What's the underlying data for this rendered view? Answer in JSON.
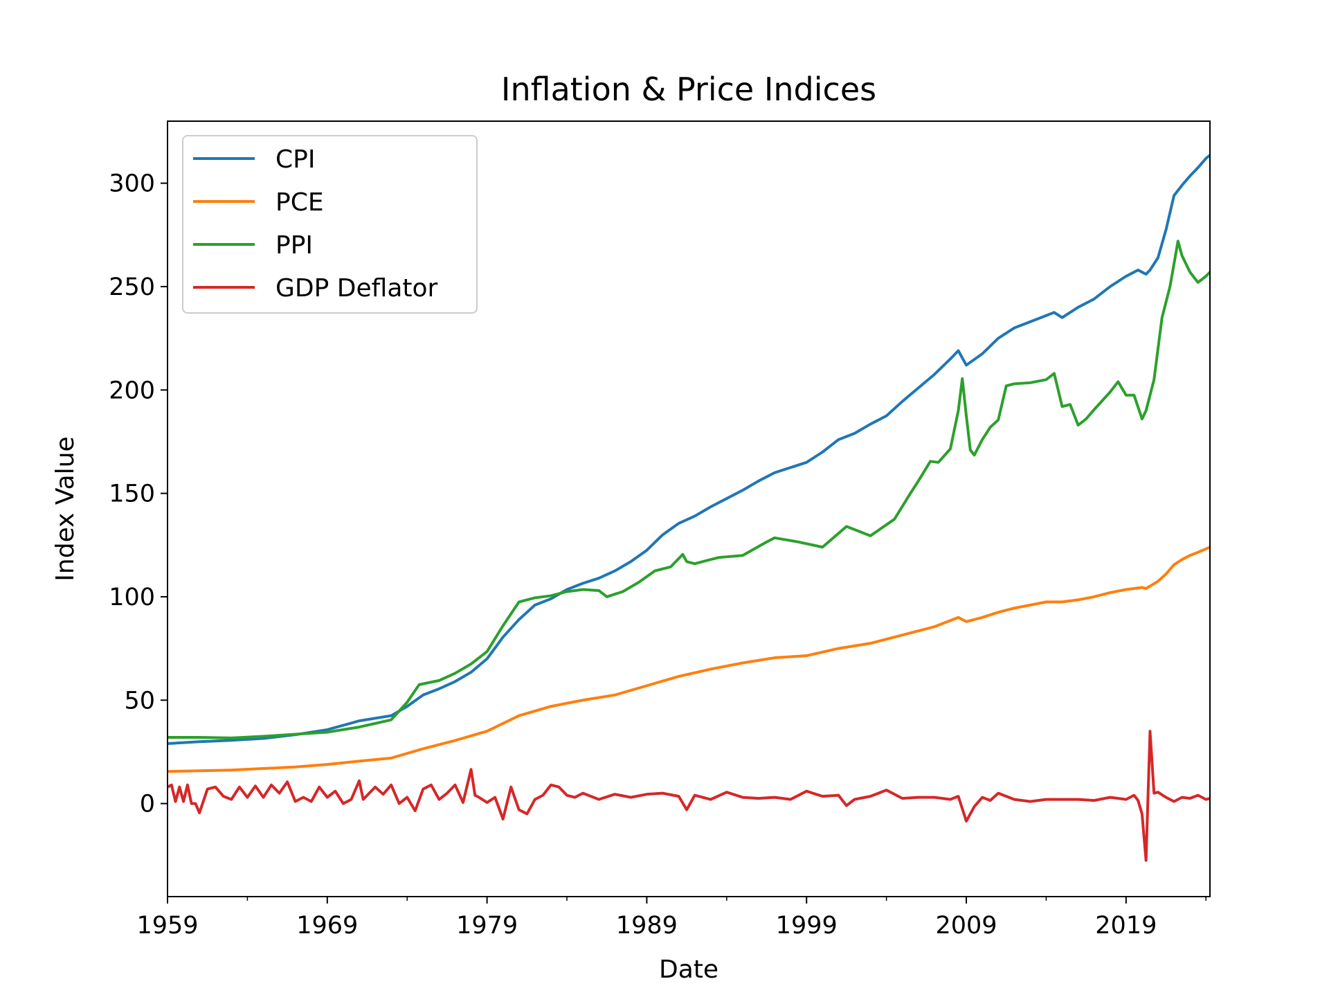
{
  "chart_data": {
    "type": "line",
    "title": "Inflation & Price Indices",
    "xlabel": "Date",
    "ylabel": "Index Value",
    "xlim": [
      1959.0,
      2024.25
    ],
    "ylim": [
      -45,
      330
    ],
    "x_ticks": [
      "1959",
      "1969",
      "1979",
      "1989",
      "1999",
      "2009",
      "2019"
    ],
    "y_ticks": [
      "0",
      "50",
      "100",
      "150",
      "200",
      "250",
      "300"
    ],
    "grid": false,
    "legend_position": "upper-left",
    "series": [
      {
        "name": "CPI",
        "color": "#1f77b4",
        "x": [
          1959.0,
          1961.0,
          1963.0,
          1965.0,
          1967.0,
          1969.0,
          1971.0,
          1973.0,
          1974.0,
          1975.0,
          1976.0,
          1977.0,
          1978.0,
          1979.0,
          1980.0,
          1981.0,
          1982.0,
          1983.0,
          1984.0,
          1985.0,
          1986.0,
          1987.0,
          1988.0,
          1989.0,
          1990.0,
          1991.0,
          1992.0,
          1993.0,
          1994.0,
          1995.0,
          1996.0,
          1997.0,
          1998.0,
          1999.0,
          2000.0,
          2001.0,
          2002.0,
          2003.0,
          2004.0,
          2005.0,
          2006.0,
          2007.0,
          2008.0,
          2008.5,
          2009.0,
          2010.0,
          2011.0,
          2012.0,
          2013.0,
          2014.0,
          2014.5,
          2015.0,
          2016.0,
          2017.0,
          2018.0,
          2019.0,
          2019.75,
          2020.25,
          2020.5,
          2021.0,
          2021.5,
          2022.0,
          2022.5,
          2023.0,
          2023.5,
          2024.0,
          2024.25
        ],
        "values": [
          29.0,
          29.9,
          30.6,
          31.5,
          33.3,
          35.7,
          40.0,
          42.5,
          47.0,
          52.5,
          55.5,
          59.0,
          63.5,
          70.0,
          80.5,
          89.0,
          96.0,
          99.0,
          103.5,
          106.5,
          109.0,
          112.5,
          117.0,
          122.5,
          130.0,
          135.5,
          139.0,
          143.5,
          147.5,
          151.5,
          156.0,
          160.0,
          162.5,
          165.0,
          170.0,
          176.0,
          179.0,
          183.5,
          187.5,
          194.5,
          201.0,
          207.5,
          215.0,
          219.0,
          212.0,
          217.5,
          225.0,
          230.0,
          233.0,
          236.0,
          237.5,
          235.0,
          240.0,
          244.0,
          250.0,
          255.0,
          258.0,
          256.0,
          258.0,
          264.0,
          277.5,
          294.0,
          299.0,
          303.5,
          307.5,
          312.0,
          313.5
        ]
      },
      {
        "name": "PCE",
        "color": "#ff7f0e",
        "x": [
          1959.0,
          1963.0,
          1967.0,
          1969.0,
          1971.0,
          1973.0,
          1975.0,
          1977.0,
          1979.0,
          1981.0,
          1983.0,
          1985.0,
          1987.0,
          1989.0,
          1991.0,
          1993.0,
          1995.0,
          1997.0,
          1999.0,
          2001.0,
          2003.0,
          2005.0,
          2007.0,
          2008.5,
          2009.0,
          2010.0,
          2011.0,
          2012.0,
          2013.0,
          2014.0,
          2015.0,
          2016.0,
          2017.0,
          2018.0,
          2019.0,
          2020.0,
          2020.25,
          2021.0,
          2021.5,
          2022.0,
          2022.5,
          2023.0,
          2023.5,
          2024.25
        ],
        "values": [
          15.5,
          16.2,
          17.7,
          18.9,
          20.5,
          22.0,
          26.5,
          30.5,
          35.0,
          42.5,
          47.0,
          50.0,
          52.5,
          57.0,
          61.5,
          65.0,
          68.0,
          70.5,
          71.5,
          75.0,
          77.5,
          81.5,
          85.5,
          90.0,
          88.0,
          90.0,
          92.5,
          94.5,
          96.0,
          97.5,
          97.5,
          98.5,
          100.0,
          102.0,
          103.5,
          104.5,
          104.0,
          107.5,
          111.0,
          115.5,
          118.0,
          120.0,
          121.5,
          124.0
        ]
      },
      {
        "name": "PPI",
        "color": "#2ca02c",
        "x": [
          1959.0,
          1961.0,
          1963.0,
          1965.0,
          1967.0,
          1969.0,
          1971.0,
          1973.0,
          1974.0,
          1974.75,
          1976.0,
          1977.0,
          1978.0,
          1979.0,
          1980.0,
          1981.0,
          1982.0,
          1983.0,
          1984.0,
          1985.0,
          1986.0,
          1986.5,
          1987.5,
          1988.5,
          1989.5,
          1990.5,
          1991.25,
          1991.5,
          1992.0,
          1993.5,
          1995.0,
          1996.5,
          1997.0,
          1998.5,
          2000.0,
          2001.5,
          2002.5,
          2003.0,
          2004.5,
          2005.5,
          2006.0,
          2006.75,
          2007.25,
          2008.0,
          2008.5,
          2008.75,
          2009.0,
          2009.25,
          2009.5,
          2010.0,
          2010.5,
          2011.0,
          2011.5,
          2012.0,
          2013.0,
          2014.0,
          2014.5,
          2015.0,
          2015.5,
          2016.0,
          2016.5,
          2017.0,
          2018.0,
          2018.5,
          2019.0,
          2019.5,
          2020.0,
          2020.25,
          2020.75,
          2021.25,
          2021.75,
          2022.25,
          2022.5,
          2023.0,
          2023.5,
          2024.0,
          2024.25
        ],
        "values": [
          32.0,
          32.0,
          31.7,
          32.5,
          33.5,
          34.5,
          37.0,
          40.5,
          49.0,
          57.5,
          59.5,
          63.0,
          67.5,
          73.5,
          86.0,
          97.5,
          99.5,
          100.5,
          102.5,
          103.5,
          103.0,
          100.0,
          102.5,
          107.0,
          112.5,
          114.5,
          120.5,
          117.0,
          116.0,
          119.0,
          120.0,
          126.5,
          128.5,
          126.5,
          124.0,
          134.0,
          131.0,
          129.5,
          137.5,
          150.0,
          156.0,
          165.5,
          165.0,
          171.5,
          190.0,
          205.5,
          187.5,
          171.0,
          168.5,
          176.0,
          182.0,
          185.5,
          202.0,
          203.0,
          203.5,
          205.0,
          208.0,
          192.0,
          193.0,
          183.0,
          186.0,
          190.5,
          199.0,
          204.0,
          197.5,
          197.5,
          186.0,
          190.0,
          205.0,
          235.0,
          250.0,
          272.0,
          265.0,
          257.0,
          252.0,
          255.0,
          257.0
        ]
      },
      {
        "name": "GDP Deflator",
        "color": "#d62728",
        "x": [
          1959.0,
          1959.25,
          1959.5,
          1959.75,
          1960.0,
          1960.25,
          1960.5,
          1960.75,
          1961.0,
          1961.5,
          1962.0,
          1962.5,
          1963.0,
          1963.5,
          1964.0,
          1964.5,
          1965.0,
          1965.5,
          1966.0,
          1966.5,
          1967.0,
          1967.5,
          1968.0,
          1968.5,
          1969.0,
          1969.5,
          1970.0,
          1970.5,
          1971.0,
          1971.25,
          1971.5,
          1972.0,
          1972.5,
          1973.0,
          1973.5,
          1974.0,
          1974.5,
          1975.0,
          1975.5,
          1976.0,
          1976.5,
          1977.0,
          1977.5,
          1978.0,
          1978.25,
          1978.5,
          1979.0,
          1979.5,
          1980.0,
          1980.5,
          1981.0,
          1981.5,
          1982.0,
          1982.5,
          1983.0,
          1983.5,
          1984.0,
          1984.5,
          1985.0,
          1986.0,
          1987.0,
          1988.0,
          1989.0,
          1990.0,
          1991.0,
          1991.5,
          1992.0,
          1993.0,
          1994.0,
          1995.0,
          1996.0,
          1997.0,
          1998.0,
          1999.0,
          2000.0,
          2001.0,
          2001.5,
          2002.0,
          2003.0,
          2004.0,
          2005.0,
          2006.0,
          2007.0,
          2008.0,
          2008.5,
          2009.0,
          2009.5,
          2010.0,
          2010.5,
          2011.0,
          2012.0,
          2013.0,
          2014.0,
          2015.0,
          2016.0,
          2017.0,
          2018.0,
          2019.0,
          2019.5,
          2019.75,
          2020.0,
          2020.25,
          2020.5,
          2020.75,
          2021.0,
          2021.5,
          2022.0,
          2022.5,
          2023.0,
          2023.5,
          2024.0,
          2024.25
        ],
        "values": [
          8.0,
          9.0,
          1.0,
          8.0,
          1.0,
          9.0,
          0.0,
          0.0,
          -4.5,
          7.0,
          8.0,
          3.5,
          2.0,
          8.0,
          3.0,
          8.5,
          3.0,
          9.0,
          5.0,
          10.5,
          1.0,
          3.0,
          1.0,
          8.0,
          3.0,
          6.0,
          0.0,
          2.0,
          11.0,
          2.0,
          4.0,
          8.0,
          4.5,
          9.0,
          0.0,
          3.0,
          -3.5,
          7.0,
          9.0,
          2.0,
          5.0,
          9.0,
          0.5,
          16.5,
          4.0,
          3.0,
          0.5,
          3.0,
          -7.5,
          8.0,
          -3.0,
          -5.0,
          2.0,
          4.0,
          9.0,
          8.0,
          4.0,
          3.0,
          5.0,
          2.0,
          4.5,
          3.0,
          4.5,
          5.0,
          3.5,
          -3.0,
          4.0,
          2.0,
          5.5,
          3.0,
          2.5,
          3.0,
          2.0,
          6.0,
          3.5,
          4.0,
          -1.0,
          2.0,
          3.5,
          6.5,
          2.5,
          3.0,
          3.0,
          2.0,
          3.5,
          -8.5,
          -1.5,
          3.0,
          1.5,
          5.0,
          2.0,
          1.0,
          2.0,
          2.0,
          2.0,
          1.5,
          3.0,
          2.0,
          4.0,
          1.5,
          -5.0,
          -27.5,
          35.0,
          5.0,
          5.5,
          3.0,
          1.0,
          3.0,
          2.5,
          4.0,
          2.0,
          2.5
        ]
      }
    ]
  }
}
